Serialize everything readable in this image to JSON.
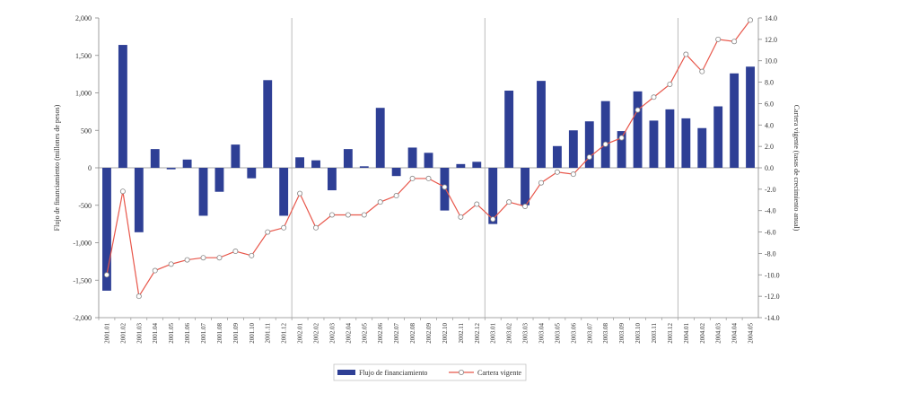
{
  "chart_data": {
    "type": "bar+line",
    "categories": [
      "2001.01",
      "2001.02",
      "2001.03",
      "2001.04",
      "2001.05",
      "2001.06",
      "2001.07",
      "2001.08",
      "2001.09",
      "2001.10",
      "2001.11",
      "2001.12",
      "2002.01",
      "2002.02",
      "2002.03",
      "2002.04",
      "2002.05",
      "2002.06",
      "2002.07",
      "2002.08",
      "2002.09",
      "2002.10",
      "2002.11",
      "2002.12",
      "2003.01",
      "2003.02",
      "2003.03",
      "2003.04",
      "2003.05",
      "2003.06",
      "2003.07",
      "2003.08",
      "2003.09",
      "2003.10",
      "2003.11",
      "2003.12",
      "2004.01",
      "2004.02",
      "2004.03",
      "2004.04",
      "2004.05"
    ],
    "series": [
      {
        "name": "Flujo de financiamiento",
        "type": "bar",
        "axis": "left",
        "color": "#2e3f95",
        "values": [
          -1640,
          1640,
          -860,
          250,
          -20,
          110,
          -640,
          -320,
          310,
          -140,
          1170,
          -640,
          140,
          100,
          -300,
          250,
          20,
          800,
          -110,
          270,
          200,
          -570,
          50,
          80,
          -750,
          1030,
          -500,
          1160,
          290,
          500,
          620,
          890,
          490,
          1020,
          630,
          780,
          660,
          530,
          820,
          1260,
          1350
        ]
      },
      {
        "name": "Cartera vigente",
        "type": "line",
        "axis": "right",
        "color": "#e8574b",
        "values": [
          -10.0,
          -2.2,
          -12.0,
          -9.6,
          -9.0,
          -8.6,
          -8.4,
          -8.4,
          -7.8,
          -8.2,
          -6.0,
          -5.6,
          -2.4,
          -5.6,
          -4.4,
          -4.4,
          -4.4,
          -3.2,
          -2.6,
          -1.0,
          -1.0,
          -1.8,
          -4.6,
          -3.4,
          -4.8,
          -3.2,
          -3.6,
          -1.4,
          -0.4,
          -0.6,
          1.0,
          2.2,
          2.8,
          5.4,
          6.6,
          7.8,
          10.6,
          9.0,
          12.0,
          11.8,
          13.8
        ]
      }
    ],
    "y_left": {
      "label": "Flujo de financiamiento (millones de pesos)",
      "ylim": [
        -2000,
        2000
      ],
      "ticks": [
        2000,
        1500,
        1000,
        500,
        0,
        -500,
        -1000,
        -1500,
        -2000
      ],
      "tick_labels": [
        "2,000",
        "1,500",
        "1,000",
        "500",
        "0",
        "-500",
        "-1,000",
        "-1,500",
        "-2,000"
      ]
    },
    "y_right": {
      "label": "Cartera vigente (tasas de crecimiento anual)",
      "ylim": [
        -14,
        14
      ],
      "ticks": [
        14,
        12,
        10,
        8,
        6,
        4,
        2,
        0,
        -2,
        -4,
        -6,
        -8,
        -10,
        -12,
        -14
      ],
      "tick_labels": [
        "14.0",
        "12.0",
        "10.0",
        "8.0",
        "6.0",
        "4.0",
        "2.0",
        "0.0",
        "-2.0",
        "-4.0",
        "-6.0",
        "-8.0",
        "-10.0",
        "-12.0",
        "-14.0"
      ]
    },
    "x_labels": [
      "2001.01",
      "2001.02",
      "2001.03",
      "2001.04",
      "2001.05",
      "2001.06",
      "2001.07",
      "2001.08",
      "2001.09",
      "2001.10",
      "2001.11",
      "2001.12",
      "2002.01",
      "2002.02",
      "2002.03",
      "2002.04",
      "2002.05",
      "2002.06",
      "2002.07",
      "2002.08",
      "2002.09",
      "2002.10",
      "2002.11",
      "2002.12",
      "2003.01",
      "2003.02",
      "2003.03",
      "2003.04",
      "2003.05",
      "2003.06",
      "2003.07",
      "2003.08",
      "2003.09",
      "2003.10",
      "2003.11",
      "2003.12",
      "2004.01",
      "2004.02",
      "2004.03",
      "2004.04",
      "2004.05"
    ],
    "year_separators_after": [
      "2001.12",
      "2002.12",
      "2003.12"
    ],
    "legend_position": "bottom-center",
    "grid": false
  }
}
